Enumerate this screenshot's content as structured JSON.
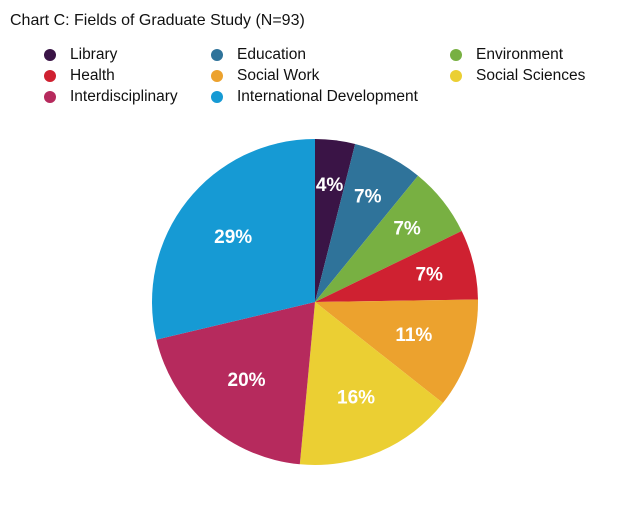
{
  "chart_data": {
    "type": "pie",
    "title": "Chart C: Fields of Graduate Study (N=93)",
    "slices": [
      {
        "name": "Library",
        "value": 4,
        "label": "4%",
        "color": "#3a1446"
      },
      {
        "name": "Education",
        "value": 7,
        "label": "7%",
        "color": "#2f739a"
      },
      {
        "name": "Environment",
        "value": 7,
        "label": "7%",
        "color": "#78b042"
      },
      {
        "name": "Health",
        "value": 7,
        "label": "7%",
        "color": "#cf2131"
      },
      {
        "name": "Social Work",
        "value": 11,
        "label": "11%",
        "color": "#eca22e"
      },
      {
        "name": "Social Sciences",
        "value": 16,
        "label": "16%",
        "color": "#ebcf33"
      },
      {
        "name": "Interdisciplinary",
        "value": 20,
        "label": "20%",
        "color": "#b62a5d"
      },
      {
        "name": "International Development",
        "value": 29,
        "label": "29%",
        "color": "#169ad4"
      }
    ],
    "legend": [
      {
        "name": "Library",
        "color": "#3a1446"
      },
      {
        "name": "Education",
        "color": "#2f739a"
      },
      {
        "name": "Environment",
        "color": "#78b042"
      },
      {
        "name": "Health",
        "color": "#cf2131"
      },
      {
        "name": "Social Work",
        "color": "#eca22e"
      },
      {
        "name": "Social Sciences",
        "color": "#ebcf33"
      },
      {
        "name": "Interdisciplinary",
        "color": "#b62a5d"
      },
      {
        "name": "International Development",
        "color": "#169ad4"
      }
    ]
  }
}
